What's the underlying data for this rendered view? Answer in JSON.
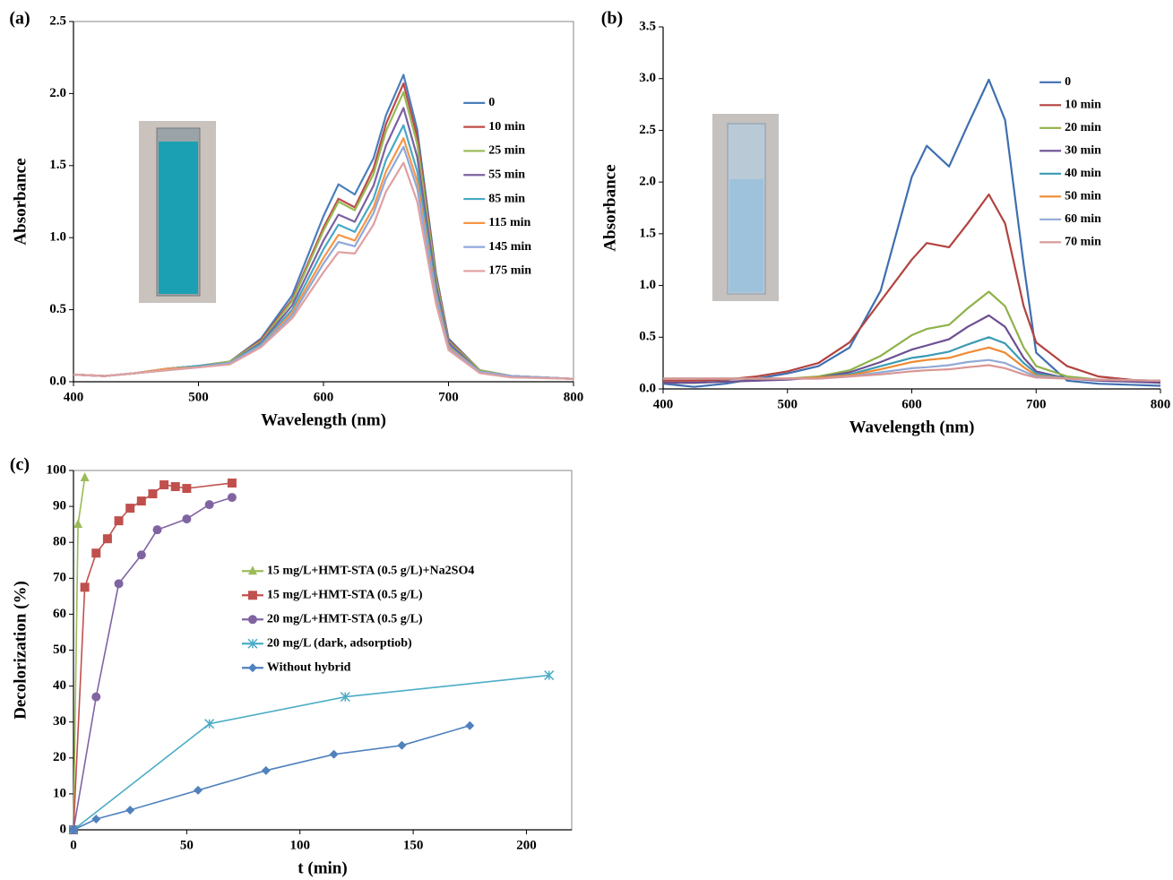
{
  "chart_data": [
    {
      "type": "line",
      "title": "(a)",
      "x_label": "Wavelength (nm)",
      "y_label": "Absorbance",
      "legend": "center right",
      "x": [
        400,
        425,
        450,
        475,
        500,
        525,
        550,
        575,
        600,
        612,
        625,
        640,
        650,
        664,
        675,
        690,
        700,
        725,
        750,
        800
      ],
      "xlim": [
        400,
        800
      ],
      "xticks": [
        400,
        500,
        600,
        700,
        800
      ],
      "ylim": [
        0,
        2.5
      ],
      "yticks": [
        {
          "value": 0,
          "label": "0.0"
        },
        0.5,
        {
          "value": 1,
          "label": "1.0"
        },
        1.5,
        {
          "value": 2,
          "label": "2.0"
        },
        2.5
      ],
      "series": [
        {
          "name": "0",
          "color": "#4a7ebb",
          "values": [
            0.05,
            0.04,
            0.06,
            0.09,
            0.11,
            0.14,
            0.3,
            0.6,
            1.15,
            1.37,
            1.3,
            1.55,
            1.85,
            2.13,
            1.75,
            0.75,
            0.3,
            0.08,
            0.04,
            0.02
          ]
        },
        {
          "name": "10 min",
          "color": "#be4b48",
          "values": [
            0.05,
            0.04,
            0.06,
            0.09,
            0.11,
            0.14,
            0.29,
            0.57,
            1.07,
            1.27,
            1.21,
            1.48,
            1.79,
            2.07,
            1.7,
            0.73,
            0.29,
            0.08,
            0.04,
            0.02
          ]
        },
        {
          "name": "25 min",
          "color": "#98b954",
          "values": [
            0.05,
            0.04,
            0.06,
            0.09,
            0.11,
            0.14,
            0.28,
            0.56,
            1.05,
            1.25,
            1.19,
            1.44,
            1.74,
            2.01,
            1.65,
            0.71,
            0.28,
            0.08,
            0.04,
            0.02
          ]
        },
        {
          "name": "55 min",
          "color": "#7d60a0",
          "values": [
            0.05,
            0.04,
            0.06,
            0.09,
            0.11,
            0.13,
            0.27,
            0.53,
            0.98,
            1.16,
            1.11,
            1.36,
            1.64,
            1.9,
            1.56,
            0.67,
            0.27,
            0.07,
            0.04,
            0.02
          ]
        },
        {
          "name": "85 min",
          "color": "#46aac5",
          "values": [
            0.05,
            0.04,
            0.06,
            0.09,
            0.11,
            0.13,
            0.26,
            0.5,
            0.92,
            1.09,
            1.04,
            1.27,
            1.54,
            1.78,
            1.46,
            0.63,
            0.25,
            0.07,
            0.04,
            0.02
          ]
        },
        {
          "name": "115 min",
          "color": "#f79646",
          "values": [
            0.05,
            0.04,
            0.06,
            0.09,
            0.1,
            0.13,
            0.25,
            0.48,
            0.86,
            1.02,
            0.98,
            1.21,
            1.46,
            1.69,
            1.39,
            0.6,
            0.24,
            0.07,
            0.04,
            0.02
          ]
        },
        {
          "name": "145 min",
          "color": "#8fa8d9",
          "values": [
            0.05,
            0.04,
            0.06,
            0.08,
            0.1,
            0.13,
            0.25,
            0.46,
            0.82,
            0.97,
            0.94,
            1.17,
            1.41,
            1.63,
            1.34,
            0.58,
            0.23,
            0.07,
            0.04,
            0.02
          ]
        },
        {
          "name": "175 min",
          "color": "#e0a0a0",
          "values": [
            0.05,
            0.04,
            0.06,
            0.08,
            0.1,
            0.12,
            0.24,
            0.44,
            0.76,
            0.9,
            0.89,
            1.09,
            1.32,
            1.52,
            1.25,
            0.54,
            0.22,
            0.06,
            0.03,
            0.02
          ]
        }
      ]
    },
    {
      "type": "line",
      "title": "(b)",
      "x_label": "Wavelength (nm)",
      "y_label": "Absorbance",
      "legend": "upper right",
      "x": [
        400,
        425,
        450,
        475,
        500,
        525,
        550,
        575,
        600,
        612,
        630,
        645,
        662,
        675,
        690,
        700,
        725,
        750,
        800
      ],
      "xlim": [
        400,
        800
      ],
      "xticks": [
        400,
        500,
        600,
        700,
        800
      ],
      "ylim": [
        0,
        3.5
      ],
      "yticks": [
        {
          "value": 0,
          "label": "0.0"
        },
        0.5,
        {
          "value": 1,
          "label": "1.0"
        },
        1.5,
        {
          "value": 2,
          "label": "2.0"
        },
        2.5,
        {
          "value": 3,
          "label": "3.0"
        },
        3.5
      ],
      "series": [
        {
          "name": "0",
          "color": "#3f6fb0",
          "values": [
            0.05,
            0.02,
            0.05,
            0.1,
            0.15,
            0.22,
            0.4,
            0.95,
            2.05,
            2.35,
            2.15,
            2.55,
            2.99,
            2.6,
            1.2,
            0.35,
            0.08,
            0.05,
            0.03
          ]
        },
        {
          "name": "10 min",
          "color": "#b24340",
          "values": [
            0.08,
            0.08,
            0.09,
            0.12,
            0.17,
            0.25,
            0.45,
            0.85,
            1.25,
            1.41,
            1.37,
            1.6,
            1.88,
            1.6,
            0.8,
            0.45,
            0.22,
            0.12,
            0.06
          ]
        },
        {
          "name": "20 min",
          "color": "#8fb24a",
          "values": [
            0.06,
            0.06,
            0.07,
            0.08,
            0.1,
            0.12,
            0.18,
            0.32,
            0.52,
            0.58,
            0.62,
            0.78,
            0.94,
            0.8,
            0.4,
            0.22,
            0.12,
            0.09,
            0.07
          ]
        },
        {
          "name": "30 min",
          "color": "#6c4f93",
          "values": [
            0.06,
            0.06,
            0.07,
            0.08,
            0.09,
            0.11,
            0.16,
            0.26,
            0.38,
            0.42,
            0.48,
            0.6,
            0.71,
            0.6,
            0.3,
            0.17,
            0.1,
            0.08,
            0.06
          ]
        },
        {
          "name": "40 min",
          "color": "#3a9bb3",
          "values": [
            0.1,
            0.1,
            0.1,
            0.1,
            0.1,
            0.11,
            0.14,
            0.22,
            0.3,
            0.32,
            0.36,
            0.43,
            0.5,
            0.44,
            0.25,
            0.15,
            0.1,
            0.09,
            0.08
          ]
        },
        {
          "name": "50 min",
          "color": "#ee8a33",
          "values": [
            0.1,
            0.1,
            0.1,
            0.1,
            0.1,
            0.11,
            0.13,
            0.19,
            0.26,
            0.28,
            0.3,
            0.35,
            0.4,
            0.35,
            0.21,
            0.13,
            0.1,
            0.09,
            0.08
          ]
        },
        {
          "name": "60 min",
          "color": "#93a9d6",
          "values": [
            0.1,
            0.1,
            0.1,
            0.1,
            0.1,
            0.1,
            0.12,
            0.16,
            0.2,
            0.21,
            0.23,
            0.26,
            0.28,
            0.25,
            0.17,
            0.12,
            0.1,
            0.09,
            0.08
          ]
        },
        {
          "name": "70 min",
          "color": "#d99694",
          "values": [
            0.1,
            0.1,
            0.1,
            0.1,
            0.1,
            0.1,
            0.12,
            0.14,
            0.17,
            0.18,
            0.19,
            0.21,
            0.23,
            0.2,
            0.14,
            0.11,
            0.1,
            0.09,
            0.08
          ]
        }
      ]
    },
    {
      "type": "line",
      "title": "(c)",
      "x_label": "t (min)",
      "y_label": "Decolorization (%)",
      "legend": "center",
      "xlim": [
        0,
        220
      ],
      "xticks": [
        0,
        50,
        100,
        150,
        200
      ],
      "ylim": [
        0,
        100
      ],
      "yticks": [
        0,
        10,
        20,
        30,
        40,
        50,
        60,
        70,
        80,
        90,
        100
      ],
      "series": [
        {
          "name": "15 mg/L+HMT-STA (0.5 g/L)+Na2SO4",
          "color": "#9bbb59",
          "marker": "triangle",
          "x": [
            0,
            2,
            5
          ],
          "values": [
            0,
            85,
            98
          ]
        },
        {
          "name": "15 mg/L+HMT-STA (0.5 g/L)",
          "color": "#c0504d",
          "marker": "square",
          "x": [
            0,
            5,
            10,
            15,
            20,
            25,
            30,
            35,
            40,
            45,
            50,
            70
          ],
          "values": [
            0,
            67.5,
            77,
            81,
            86,
            89.5,
            91.5,
            93.5,
            96,
            95.5,
            95,
            96.5
          ]
        },
        {
          "name": "20 mg/L+HMT-STA (0.5 g/L)",
          "color": "#8064a2",
          "marker": "circle",
          "x": [
            0,
            10,
            20,
            30,
            37,
            50,
            60,
            70
          ],
          "values": [
            0,
            37,
            68.5,
            76.5,
            83.5,
            86.5,
            90.5,
            92.5
          ]
        },
        {
          "name": "20 mg/L (dark, adsorptiob)",
          "color": "#4bacc6",
          "marker": "asterisk",
          "x": [
            0,
            60,
            120,
            210
          ],
          "values": [
            0,
            29.5,
            37,
            43
          ]
        },
        {
          "name": "Without hybrid",
          "color": "#4f81bd",
          "marker": "diamond",
          "x": [
            0,
            10,
            25,
            55,
            85,
            115,
            145,
            175
          ],
          "values": [
            0,
            3,
            5.5,
            11,
            16.5,
            21,
            23.5,
            29
          ]
        }
      ]
    }
  ]
}
